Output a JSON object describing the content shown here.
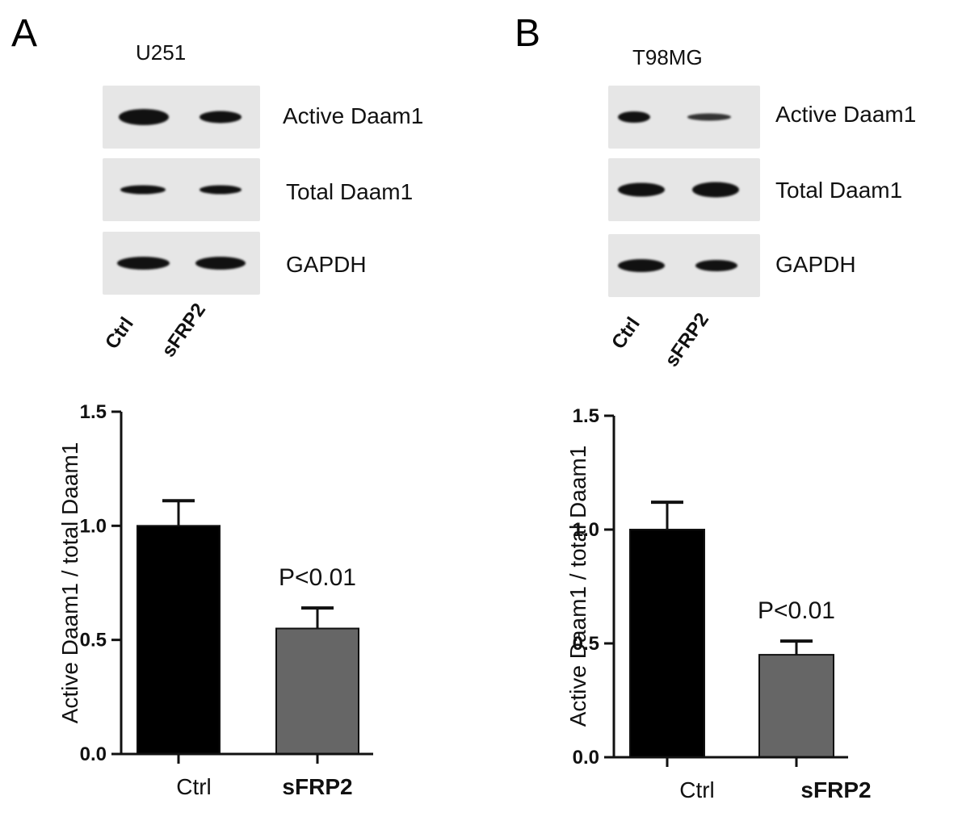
{
  "panels": [
    {
      "letter": "A",
      "cell_line": "U251",
      "blot_labels": [
        "Active Daam1",
        "Total Daam1",
        "GAPDH"
      ],
      "lane_labels": [
        "Ctrl",
        "sFRP2"
      ]
    },
    {
      "letter": "B",
      "cell_line": "T98MG",
      "blot_labels": [
        "Active Daam1",
        "Total Daam1",
        "GAPDH"
      ],
      "lane_labels": [
        "Ctrl",
        "sFRP2"
      ]
    }
  ],
  "chart_data": [
    {
      "type": "bar",
      "categories": [
        "Ctrl",
        "sFRP2"
      ],
      "values": [
        1.0,
        0.55
      ],
      "errors": [
        0.11,
        0.09
      ],
      "colors": [
        "#000000",
        "#666666"
      ],
      "ylabel": "Active Daam1 / total Daam1",
      "ylim": [
        0,
        1.5
      ],
      "yticks": [
        "0.0",
        "0.5",
        "1.0",
        "1.5"
      ],
      "annotation": "P<0.01",
      "grid": false
    },
    {
      "type": "bar",
      "categories": [
        "Ctrl",
        "sFRP2"
      ],
      "values": [
        1.0,
        0.45
      ],
      "errors": [
        0.12,
        0.06
      ],
      "colors": [
        "#000000",
        "#666666"
      ],
      "ylabel": "Active Daam1 / total Daam1",
      "ylim": [
        0,
        1.5
      ],
      "yticks": [
        "0.0",
        "0.5",
        "1.0",
        "1.5"
      ],
      "annotation": "P<0.01",
      "grid": false
    }
  ]
}
